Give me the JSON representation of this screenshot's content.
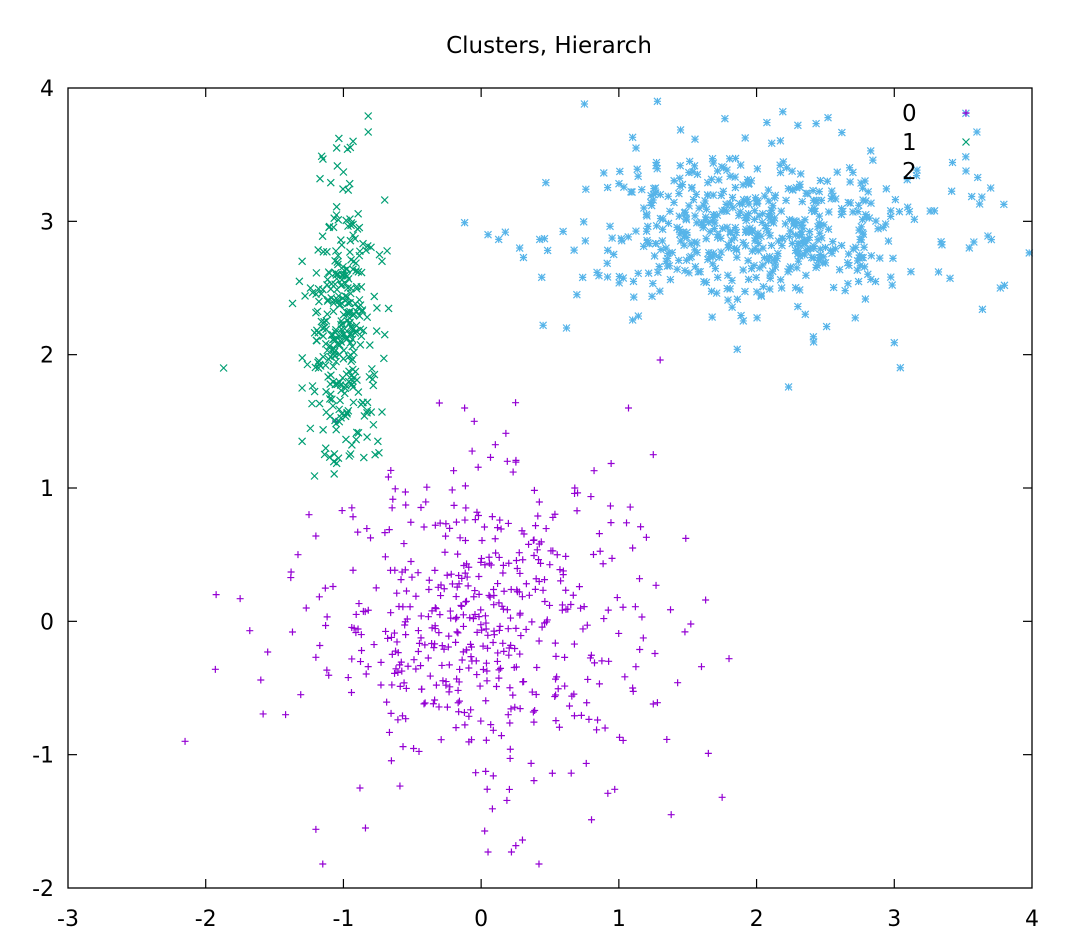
{
  "chart_data": {
    "type": "scatter",
    "title": "Clusters, Hierarch",
    "xlabel": "",
    "ylabel": "",
    "xlim": [
      -3,
      4
    ],
    "ylim": [
      -2,
      4
    ],
    "xticks": [
      "-3",
      "-2",
      "-1",
      "0",
      "1",
      "2",
      "3",
      "4"
    ],
    "yticks": [
      "-2",
      "-1",
      "0",
      "1",
      "2",
      "3",
      "4"
    ],
    "grid": false,
    "legend_position": "top-right",
    "series": [
      {
        "name": "0",
        "marker": "plus",
        "color": "#9400d3",
        "center": [
          0.0,
          0.0
        ],
        "spread": [
          0.55,
          0.55
        ],
        "count": 530,
        "points": [
          [
            -2.15,
            -0.9
          ],
          [
            -1.93,
            -0.36
          ],
          [
            -1.75,
            0.17
          ],
          [
            -1.68,
            -0.07
          ],
          [
            -1.6,
            -0.44
          ],
          [
            -1.55,
            -0.23
          ],
          [
            -1.42,
            -0.7
          ],
          [
            -1.38,
            0.37
          ],
          [
            -1.37,
            -0.08
          ],
          [
            -1.31,
            -0.55
          ],
          [
            -1.27,
            0.1
          ],
          [
            -1.2,
            -0.27
          ],
          [
            -1.2,
            -1.56
          ],
          [
            -1.15,
            -1.82
          ],
          [
            -0.84,
            -1.55
          ],
          [
            -0.88,
            -1.25
          ],
          [
            0.05,
            -1.73
          ],
          [
            0.22,
            -1.73
          ],
          [
            0.3,
            -1.64
          ],
          [
            0.42,
            -1.82
          ],
          [
            0.97,
            -1.26
          ],
          [
            1.38,
            -1.45
          ],
          [
            1.75,
            -1.32
          ],
          [
            1.8,
            -0.28
          ],
          [
            1.6,
            -0.34
          ],
          [
            1.63,
            0.16
          ],
          [
            1.3,
            1.96
          ],
          [
            1.25,
            1.25
          ],
          [
            1.07,
            1.6
          ],
          [
            0.82,
            1.13
          ],
          [
            0.68,
            1.0
          ],
          [
            0.25,
            1.64
          ],
          [
            0.19,
            1.2
          ],
          [
            -0.12,
            1.6
          ],
          [
            -0.05,
            1.5
          ],
          [
            -0.2,
            1.13
          ],
          [
            -0.55,
            0.97
          ],
          [
            -1.25,
            0.8
          ],
          [
            -1.33,
            0.5
          ],
          [
            -1.2,
            0.64
          ],
          [
            1.15,
            0.32
          ],
          [
            1.1,
            0.55
          ],
          [
            1.2,
            0.63
          ],
          [
            1.27,
            0.27
          ],
          [
            1.25,
            -0.62
          ],
          [
            1.28,
            -0.61
          ],
          [
            0.9,
            -0.8
          ],
          [
            0.92,
            -1.29
          ],
          [
            1.1,
            -0.5
          ]
        ]
      },
      {
        "name": "1",
        "marker": "cross",
        "color": "#009e73",
        "center": [
          -1.0,
          2.2
        ],
        "spread": [
          0.12,
          0.55
        ],
        "count": 330,
        "points": [
          [
            -1.87,
            1.9
          ],
          [
            -0.82,
            3.79
          ],
          [
            -0.82,
            3.67
          ],
          [
            -0.93,
            3.6
          ],
          [
            -0.7,
            3.16
          ],
          [
            -0.72,
            2.7
          ],
          [
            -0.7,
            2.15
          ],
          [
            -0.72,
            1.57
          ],
          [
            -0.75,
            1.35
          ],
          [
            -1.3,
            1.35
          ],
          [
            -1.3,
            2.7
          ],
          [
            -1.32,
            2.55
          ],
          [
            -1.3,
            1.75
          ],
          [
            -1.17,
            3.32
          ],
          [
            -1.0,
            3.37
          ],
          [
            -0.77,
            1.25
          ],
          [
            -1.21,
            1.09
          ]
        ]
      },
      {
        "name": "2",
        "marker": "star",
        "color": "#56b4e9",
        "center": [
          2.0,
          2.95
        ],
        "spread": [
          0.6,
          0.3
        ],
        "count": 560,
        "points": [
          [
            0.75,
            3.88
          ],
          [
            1.28,
            3.9
          ],
          [
            -0.12,
            2.99
          ],
          [
            0.05,
            2.9
          ],
          [
            0.45,
            2.22
          ],
          [
            0.62,
            2.2
          ],
          [
            0.44,
            2.58
          ],
          [
            0.46,
            2.87
          ],
          [
            0.47,
            3.29
          ],
          [
            3.52,
            3.81
          ],
          [
            3.6,
            3.67
          ],
          [
            3.64,
            2.34
          ],
          [
            3.7,
            3.25
          ],
          [
            3.62,
            3.13
          ],
          [
            3.8,
            2.52
          ],
          [
            3.77,
            2.5
          ],
          [
            3.68,
            2.89
          ],
          [
            3.0,
            2.09
          ],
          [
            1.1,
            2.26
          ],
          [
            1.1,
            3.63
          ],
          [
            1.77,
            3.77
          ],
          [
            2.3,
            3.72
          ]
        ]
      }
    ]
  }
}
